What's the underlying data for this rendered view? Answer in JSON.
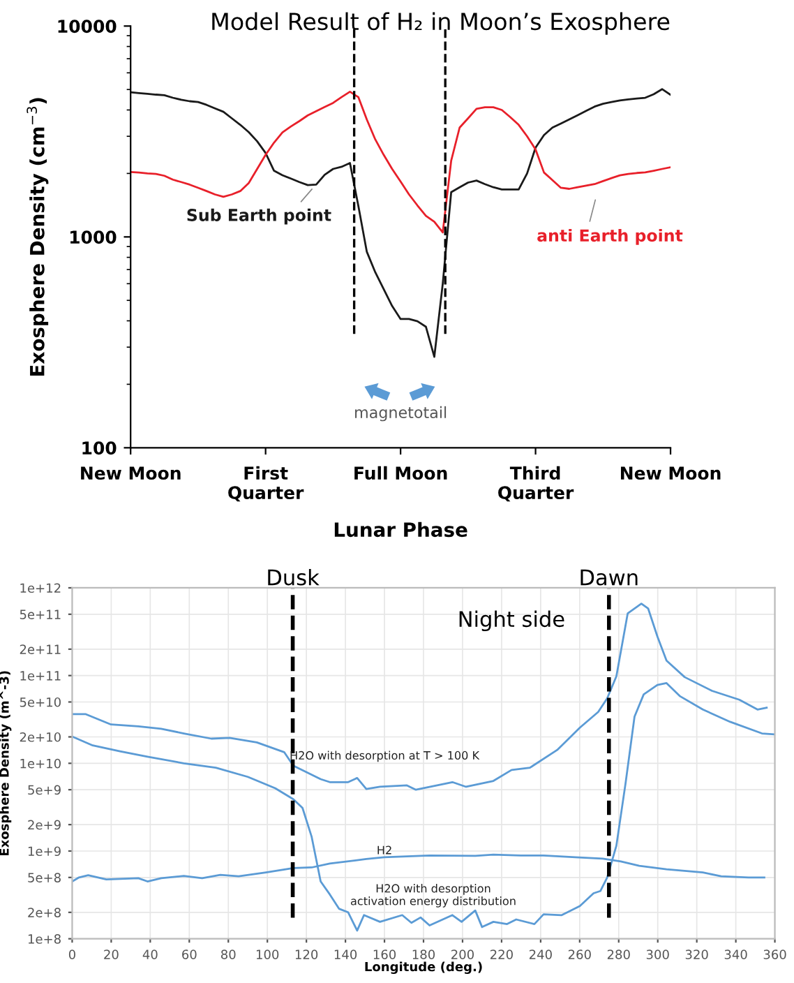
{
  "chart_data": [
    {
      "type": "line",
      "title": "Model Result of H₂ in Moon’s Exosphere",
      "xlabel": "Lunar Phase",
      "ylabel": "Exosphere Density (cm$^{−3}$)",
      "log": "y",
      "ylim": [
        100,
        10000
      ],
      "categories": [
        "New Moon",
        null,
        null,
        null,
        null,
        null,
        null,
        null,
        null,
        null,
        null,
        null,
        null,
        null,
        null,
        null,
        "First\nQuarter",
        null,
        null,
        null,
        null,
        null,
        null,
        null,
        null,
        null,
        null,
        null,
        null,
        null,
        null,
        null,
        "Full Moon",
        null,
        null,
        null,
        null,
        null,
        null,
        null,
        null,
        null,
        null,
        null,
        null,
        null,
        null,
        null,
        "Third\nQuarter",
        null,
        null,
        null,
        null,
        null,
        null,
        null,
        null,
        null,
        null,
        null,
        null,
        null,
        null,
        null,
        "New Moon"
      ],
      "yticks": [
        100,
        1000,
        10000
      ],
      "annotations": [
        "magnetotail"
      ],
      "series": [
        {
          "name": "Sub Earth point",
          "color": "#1a1a1a",
          "values": [
            4850,
            4810,
            4770,
            4730,
            4700,
            4570,
            4470,
            4400,
            4360,
            4230,
            4070,
            3920,
            3650,
            3400,
            3140,
            2840,
            2500,
            2060,
            1960,
            1890,
            1820,
            1760,
            1770,
            1970,
            2100,
            2150,
            2240,
            1400,
            850,
            680,
            565,
            470,
            408,
            408,
            398,
            375,
            270,
            600,
            1630,
            1720,
            1810,
            1850,
            1780,
            1720,
            1680,
            1680,
            1680,
            2000,
            2650,
            3040,
            3300,
            3450,
            3610,
            3780,
            3960,
            4150,
            4280,
            4360,
            4440,
            4490,
            4530,
            4570,
            4750,
            5020,
            4720
          ]
        },
        {
          "name": "anti Earth point",
          "color": "#e8202a",
          "values": [
            2030,
            2020,
            2000,
            1990,
            1950,
            1870,
            1820,
            1770,
            1710,
            1650,
            1590,
            1550,
            1590,
            1650,
            1800,
            2100,
            2450,
            2800,
            3130,
            3340,
            3540,
            3770,
            3950,
            4130,
            4320,
            4600,
            4880,
            4600,
            3600,
            2900,
            2450,
            2100,
            1830,
            1590,
            1410,
            1260,
            1180,
            1050,
            2300,
            3300,
            3650,
            4050,
            4120,
            4120,
            4000,
            3700,
            3400,
            3000,
            2600,
            2020,
            1860,
            1710,
            1690,
            1720,
            1750,
            1780,
            1840,
            1900,
            1960,
            1990,
            2010,
            2025,
            2060,
            2100,
            2140
          ]
        }
      ]
    },
    {
      "type": "line",
      "xlabel": "Longitude (deg.)",
      "ylabel": "Exosphere Density (m^-3)",
      "log": "y",
      "xlim": [
        0,
        360
      ],
      "ylim": [
        100000000.0,
        1000000000000.0
      ],
      "grid": true,
      "xticks": [
        0,
        20,
        40,
        60,
        80,
        100,
        120,
        140,
        160,
        180,
        200,
        220,
        240,
        260,
        280,
        300,
        320,
        340,
        360
      ],
      "yticks": [
        {
          "value": 100000000.0,
          "label": "1e+8"
        },
        {
          "value": 200000000.0,
          "label": "2e+8"
        },
        {
          "value": 500000000.0,
          "label": "5e+8"
        },
        {
          "value": 1000000000.0,
          "label": "1e+9"
        },
        {
          "value": 2000000000.0,
          "label": "2e+9"
        },
        {
          "value": 5000000000.0,
          "label": "5e+9"
        },
        {
          "value": 10000000000.0,
          "label": "1e+10"
        },
        {
          "value": 20000000000.0,
          "label": "2e+10"
        },
        {
          "value": 50000000000.0,
          "label": "5e+10"
        },
        {
          "value": 100000000000.0,
          "label": "1e+11"
        },
        {
          "value": 200000000000.0,
          "label": "2e+11"
        },
        {
          "value": 500000000000.0,
          "label": "5e+11"
        },
        {
          "value": 1000000000000.0,
          "label": "1e+12"
        }
      ],
      "ref_lines": [
        {
          "axis": "x",
          "value": 113,
          "label": "Dusk",
          "color": "#000000",
          "line_style": "dashed"
        },
        {
          "axis": "x",
          "value": 275,
          "label": "Dawn",
          "color": "#000000",
          "line_style": "dashed"
        }
      ],
      "annotations": [
        "Night side"
      ],
      "series": [
        {
          "name": "H2O with desorption at T > 100 K",
          "color": "#5b9bd5",
          "x": [
            0,
            7,
            19.9,
            33.9,
            45.6,
            57.2,
            71.3,
            80.6,
            94.6,
            108.6,
            113.3,
            127.3,
            132,
            141.4,
            146,
            150.7,
            157.7,
            171.5,
            176.1,
            194.8,
            201.8,
            215.8,
            225.1,
            234.5,
            248.5,
            260.1,
            269.5,
            274.1,
            278.8,
            284.6,
            291.6,
            295.1,
            299.8,
            304.5,
            313.8,
            327.8,
            341.8,
            351.1,
            355.8
          ],
          "values": [
            36300000000.0,
            36300000000.0,
            27700000000.0,
            26400000000.0,
            24700000000.0,
            21900000000.0,
            19100000000.0,
            19500000000.0,
            17300000000.0,
            13400000000.0,
            9400000000.0,
            6600000000.0,
            6100000000.0,
            6100000000.0,
            6800000000.0,
            5100000000.0,
            5400000000.0,
            5600000000.0,
            5000000000.0,
            6100000000.0,
            5400000000.0,
            6300000000.0,
            8400000000.0,
            8900000000.0,
            14200000000.0,
            25500000000.0,
            38500000000.0,
            55000000000.0,
            98000000000.0,
            510000000000.0,
            660000000000.0,
            580000000000.0,
            280000000000.0,
            148000000000.0,
            96000000000.0,
            67000000000.0,
            53000000000.0,
            41000000000.0,
            43000000000.0
          ]
        },
        {
          "name": "H2",
          "color": "#5b9bd5",
          "x": [
            0,
            3.5,
            8.2,
            17.5,
            33.9,
            38.6,
            45.6,
            57.2,
            66.6,
            75.9,
            85.3,
            99.3,
            113.3,
            122.7,
            132,
            150.7,
            159.8,
            183.1,
            206.5,
            215.8,
            229.8,
            241.5,
            257.8,
            271.8,
            281.1,
            290.5,
            304.5,
            323.1,
            332.5,
            346.5,
            354.6
          ],
          "values": [
            450000000.0,
            500000000.0,
            530000000.0,
            475000000.0,
            490000000.0,
            450000000.0,
            490000000.0,
            520000000.0,
            490000000.0,
            535000000.0,
            515000000.0,
            570000000.0,
            640000000.0,
            650000000.0,
            720000000.0,
            810000000.0,
            850000000.0,
            890000000.0,
            880000000.0,
            910000000.0,
            890000000.0,
            890000000.0,
            850000000.0,
            820000000.0,
            760000000.0,
            680000000.0,
            620000000.0,
            570000000.0,
            515000000.0,
            500000000.0,
            500000000.0
          ]
        },
        {
          "name": "H2O with desorption\nactivation energy distribution",
          "color": "#5b9bd5",
          "x": [
            0,
            10.5,
            24.5,
            38.6,
            57.2,
            73.6,
            90,
            104,
            113.3,
            118,
            122.7,
            127.3,
            132,
            136.7,
            141.4,
            146,
            149.5,
            157.7,
            169.1,
            173.8,
            178.5,
            183.1,
            194.8,
            199.5,
            206.5,
            210,
            215.8,
            222.8,
            227.5,
            236.8,
            241.5,
            250.8,
            260.1,
            267.1,
            270.6,
            274.1,
            278.8,
            283.5,
            288.1,
            292.8,
            299.8,
            304.5,
            311.5,
            323.1,
            337.1,
            353.4,
            359.3
          ],
          "values": [
            20200000000.0,
            16000000000.0,
            13700000000.0,
            11900000000.0,
            10000000000.0,
            8900000000.0,
            7000000000.0,
            5200000000.0,
            3900000000.0,
            3100000000.0,
            1450000000.0,
            450000000.0,
            320000000.0,
            220000000.0,
            200000000.0,
            124000000.0,
            186000000.0,
            156000000.0,
            186000000.0,
            152000000.0,
            175000000.0,
            142000000.0,
            186000000.0,
            156000000.0,
            210000000.0,
            136000000.0,
            156000000.0,
            147000000.0,
            166000000.0,
            147000000.0,
            190000000.0,
            186000000.0,
            236000000.0,
            330000000.0,
            350000000.0,
            500000000.0,
            1150000000.0,
            5900000000.0,
            34000000000.0,
            61000000000.0,
            78000000000.0,
            82000000000.0,
            58000000000.0,
            41000000000.0,
            29700000000.0,
            21900000000.0,
            21400000000.0
          ]
        }
      ]
    }
  ]
}
